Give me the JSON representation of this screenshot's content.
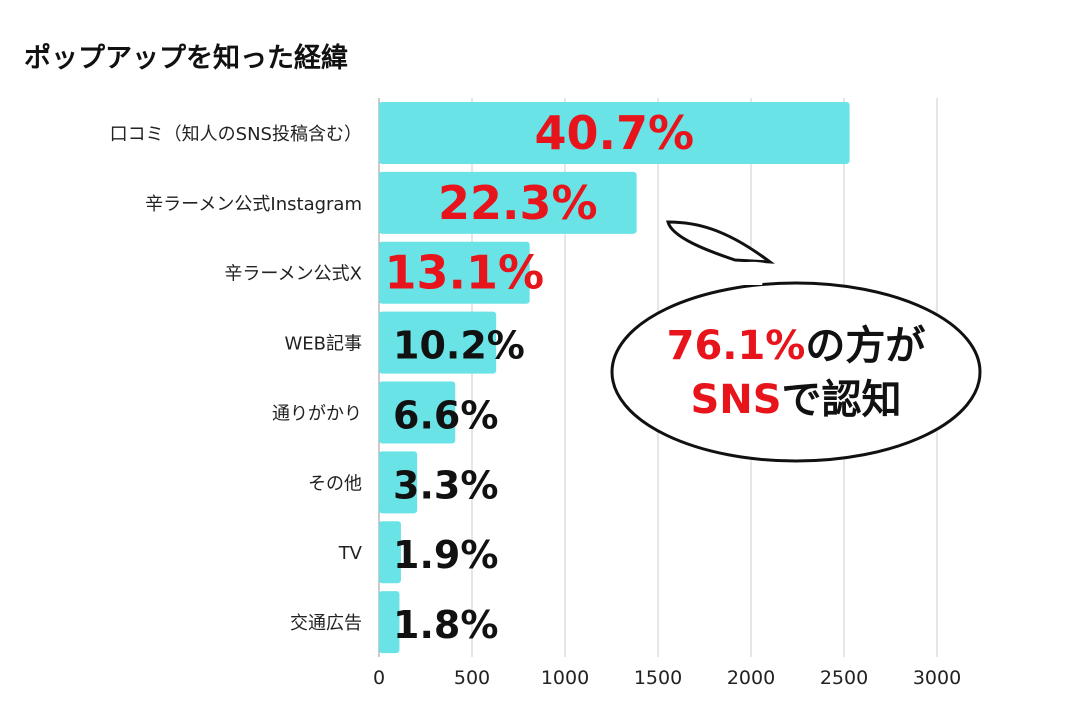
{
  "title": "ポップアップを知った経緯",
  "callout": {
    "line1_highlight": "76.1%",
    "line1_rest": "の方が",
    "line2_highlight": "SNS",
    "line2_rest": "で認知"
  },
  "colors": {
    "bar": "#6ae3e6",
    "highlight": "#e8141b",
    "text": "#111111",
    "grid": "#cccccc"
  },
  "chart_data": {
    "type": "bar",
    "orientation": "horizontal",
    "title": "ポップアップを知った経緯",
    "categories": [
      "口コミ（知人のSNS投稿含む）",
      "辛ラーメン公式Instagram",
      "辛ラーメン公式X",
      "WEB記事",
      "通りがかり",
      "その他",
      "TV",
      "交通広告"
    ],
    "values": [
      2530,
      1385,
      810,
      630,
      410,
      205,
      118,
      110
    ],
    "labels": [
      "40.7%",
      "22.3%",
      "13.1%",
      "10.2%",
      "6.6%",
      "3.3%",
      "1.9%",
      "1.8%"
    ],
    "label_highlight": [
      true,
      true,
      true,
      false,
      false,
      false,
      false,
      false
    ],
    "xticks": [
      0,
      500,
      1000,
      1500,
      2000,
      2500,
      3000
    ],
    "xlim": [
      0,
      3000
    ],
    "grid": true
  }
}
